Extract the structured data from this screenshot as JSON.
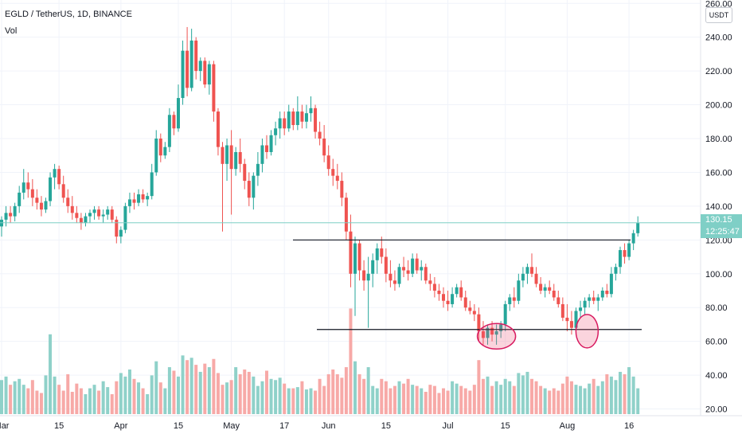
{
  "header": {
    "symbol_line": "EGLD / TetherUS, 1D, BINANCE",
    "volume_label": "Vol"
  },
  "price_scale": {
    "currency": "USDT",
    "last_price": "130.15",
    "countdown": "12:25:47"
  },
  "chart_data": {
    "type": "candlestick",
    "title": "",
    "y_ticks": [
      "260.00",
      "240.00",
      "220.00",
      "200.00",
      "180.00",
      "160.00",
      "140.00",
      "120.00",
      "100.00",
      "80.00",
      "60.00",
      "40.00",
      "20.00"
    ],
    "x_ticks": [
      "Mar",
      "15",
      "Apr",
      "15",
      "May",
      "17",
      "Jun",
      "15",
      "Jul",
      "15",
      "Aug",
      "16"
    ],
    "ylim": [
      16,
      262
    ],
    "colors": {
      "up": "#26a69a",
      "down": "#ef5350",
      "vol_up": "#8fd1c9",
      "vol_down": "#f7a9a7",
      "last_price_line": "#7fcfc6"
    },
    "candles": [
      [
        128,
        134,
        122,
        132,
        29
      ],
      [
        132,
        140,
        128,
        136,
        32
      ],
      [
        136,
        140,
        130,
        134,
        25
      ],
      [
        134,
        142,
        131,
        140,
        28
      ],
      [
        140,
        152,
        136,
        148,
        30
      ],
      [
        148,
        162,
        144,
        154,
        25
      ],
      [
        154,
        160,
        145,
        150,
        22
      ],
      [
        150,
        156,
        140,
        145,
        29
      ],
      [
        145,
        150,
        138,
        142,
        20
      ],
      [
        142,
        146,
        134,
        138,
        18
      ],
      [
        138,
        145,
        136,
        143,
        33
      ],
      [
        143,
        160,
        140,
        157,
        68
      ],
      [
        157,
        165,
        150,
        162,
        32
      ],
      [
        162,
        164,
        150,
        153,
        25
      ],
      [
        153,
        158,
        142,
        145,
        20
      ],
      [
        145,
        150,
        136,
        140,
        34
      ],
      [
        140,
        146,
        132,
        136,
        19
      ],
      [
        136,
        140,
        130,
        133,
        26
      ],
      [
        133,
        136,
        126,
        130,
        22
      ],
      [
        130,
        136,
        128,
        134,
        17
      ],
      [
        134,
        138,
        130,
        136,
        22
      ],
      [
        136,
        140,
        132,
        138,
        25
      ],
      [
        138,
        140,
        132,
        134,
        20
      ],
      [
        134,
        138,
        130,
        135,
        28
      ],
      [
        135,
        140,
        132,
        138,
        23
      ],
      [
        138,
        140,
        130,
        132,
        17
      ],
      [
        132,
        134,
        118,
        122,
        28
      ],
      [
        122,
        128,
        118,
        126,
        35
      ],
      [
        126,
        142,
        124,
        140,
        32
      ],
      [
        140,
        148,
        136,
        144,
        38
      ],
      [
        144,
        148,
        138,
        142,
        30
      ],
      [
        142,
        150,
        140,
        147,
        27
      ],
      [
        147,
        150,
        142,
        144,
        22
      ],
      [
        144,
        148,
        140,
        146,
        17
      ],
      [
        146,
        165,
        144,
        160,
        33
      ],
      [
        160,
        185,
        158,
        180,
        45
      ],
      [
        180,
        183,
        166,
        170,
        27
      ],
      [
        170,
        178,
        168,
        175,
        22
      ],
      [
        175,
        198,
        172,
        194,
        40
      ],
      [
        194,
        196,
        182,
        186,
        37
      ],
      [
        186,
        212,
        184,
        204,
        32
      ],
      [
        204,
        238,
        200,
        232,
        50
      ],
      [
        232,
        246,
        205,
        210,
        46
      ],
      [
        210,
        245,
        208,
        238,
        48
      ],
      [
        238,
        240,
        215,
        220,
        42
      ],
      [
        220,
        228,
        214,
        226,
        36
      ],
      [
        226,
        228,
        210,
        212,
        43
      ],
      [
        212,
        226,
        206,
        224,
        40
      ],
      [
        224,
        226,
        190,
        196,
        47
      ],
      [
        196,
        198,
        170,
        175,
        35
      ],
      [
        175,
        178,
        125,
        165,
        25
      ],
      [
        165,
        180,
        155,
        176,
        27
      ],
      [
        176,
        185,
        135,
        162,
        29
      ],
      [
        162,
        175,
        158,
        172,
        40
      ],
      [
        172,
        180,
        160,
        165,
        34
      ],
      [
        165,
        168,
        150,
        155,
        38
      ],
      [
        155,
        160,
        140,
        145,
        36
      ],
      [
        145,
        160,
        138,
        158,
        32
      ],
      [
        158,
        172,
        152,
        165,
        24
      ],
      [
        165,
        180,
        160,
        176,
        28
      ],
      [
        176,
        182,
        168,
        172,
        37
      ],
      [
        172,
        185,
        170,
        182,
        30
      ],
      [
        182,
        190,
        176,
        186,
        29
      ],
      [
        186,
        196,
        180,
        192,
        31
      ],
      [
        192,
        196,
        182,
        186,
        26
      ],
      [
        186,
        200,
        184,
        196,
        22
      ],
      [
        196,
        198,
        185,
        188,
        22
      ],
      [
        188,
        205,
        185,
        196,
        23
      ],
      [
        196,
        200,
        186,
        190,
        28
      ],
      [
        190,
        200,
        186,
        195,
        21
      ],
      [
        195,
        205,
        190,
        198,
        22
      ],
      [
        198,
        200,
        180,
        184,
        20
      ],
      [
        184,
        190,
        176,
        180,
        30
      ],
      [
        180,
        188,
        166,
        170,
        24
      ],
      [
        170,
        176,
        158,
        162,
        34
      ],
      [
        162,
        168,
        152,
        158,
        38
      ],
      [
        158,
        165,
        150,
        155,
        34
      ],
      [
        155,
        160,
        140,
        145,
        31
      ],
      [
        145,
        148,
        120,
        125,
        40
      ],
      [
        125,
        135,
        92,
        100,
        90
      ],
      [
        100,
        122,
        75,
        118,
        45
      ],
      [
        118,
        120,
        96,
        102,
        34
      ],
      [
        102,
        108,
        90,
        96,
        30
      ],
      [
        96,
        110,
        68,
        100,
        40
      ],
      [
        100,
        112,
        92,
        108,
        24
      ],
      [
        108,
        118,
        100,
        115,
        22
      ],
      [
        115,
        122,
        106,
        110,
        30
      ],
      [
        110,
        115,
        95,
        100,
        28
      ],
      [
        100,
        108,
        92,
        96,
        22
      ],
      [
        96,
        102,
        90,
        94,
        24
      ],
      [
        94,
        106,
        92,
        104,
        28
      ],
      [
        104,
        110,
        98,
        102,
        26
      ],
      [
        102,
        108,
        96,
        100,
        30
      ],
      [
        100,
        112,
        98,
        109,
        25
      ],
      [
        109,
        112,
        100,
        102,
        24
      ],
      [
        102,
        108,
        96,
        104,
        22
      ],
      [
        104,
        106,
        94,
        96,
        19
      ],
      [
        96,
        100,
        90,
        94,
        25
      ],
      [
        94,
        98,
        86,
        90,
        24
      ],
      [
        90,
        94,
        84,
        88,
        18
      ],
      [
        88,
        92,
        80,
        84,
        22
      ],
      [
        84,
        90,
        78,
        82,
        20
      ],
      [
        82,
        92,
        80,
        88,
        28
      ],
      [
        88,
        94,
        86,
        92,
        26
      ],
      [
        92,
        96,
        84,
        86,
        24
      ],
      [
        86,
        90,
        78,
        80,
        22
      ],
      [
        80,
        84,
        76,
        78,
        20
      ],
      [
        78,
        82,
        72,
        76,
        25
      ],
      [
        76,
        80,
        60,
        66,
        46
      ],
      [
        66,
        72,
        58,
        62,
        30
      ],
      [
        62,
        70,
        58,
        68,
        32
      ],
      [
        68,
        72,
        60,
        64,
        24
      ],
      [
        64,
        70,
        58,
        66,
        28
      ],
      [
        66,
        72,
        62,
        70,
        25
      ],
      [
        70,
        84,
        66,
        82,
        30
      ],
      [
        82,
        88,
        78,
        86,
        28
      ],
      [
        86,
        92,
        80,
        84,
        24
      ],
      [
        84,
        100,
        82,
        96,
        35
      ],
      [
        96,
        104,
        92,
        100,
        33
      ],
      [
        100,
        106,
        94,
        104,
        36
      ],
      [
        104,
        112,
        98,
        100,
        30
      ],
      [
        100,
        104,
        92,
        94,
        28
      ],
      [
        94,
        98,
        88,
        90,
        24
      ],
      [
        90,
        94,
        86,
        92,
        22
      ],
      [
        92,
        96,
        88,
        90,
        20
      ],
      [
        90,
        94,
        84,
        86,
        22
      ],
      [
        86,
        90,
        80,
        82,
        20
      ],
      [
        82,
        86,
        72,
        74,
        26
      ],
      [
        74,
        82,
        66,
        72,
        32
      ],
      [
        72,
        78,
        64,
        68,
        28
      ],
      [
        68,
        80,
        66,
        78,
        25
      ],
      [
        78,
        84,
        74,
        80,
        24
      ],
      [
        80,
        86,
        76,
        84,
        22
      ],
      [
        84,
        88,
        80,
        86,
        26
      ],
      [
        86,
        90,
        82,
        84,
        30
      ],
      [
        84,
        88,
        78,
        86,
        24
      ],
      [
        86,
        92,
        84,
        90,
        28
      ],
      [
        90,
        94,
        86,
        88,
        34
      ],
      [
        88,
        104,
        86,
        100,
        32
      ],
      [
        100,
        106,
        96,
        104,
        29
      ],
      [
        104,
        116,
        100,
        114,
        36
      ],
      [
        114,
        118,
        106,
        110,
        34
      ],
      [
        110,
        120,
        108,
        118,
        40
      ],
      [
        118,
        126,
        114,
        124,
        32
      ],
      [
        124,
        134,
        122,
        130,
        22
      ]
    ],
    "annotations": {
      "resistance_line": 120,
      "support_line": 67,
      "bottom_ellipses": [
        "first bottom",
        "second bottom"
      ]
    }
  }
}
